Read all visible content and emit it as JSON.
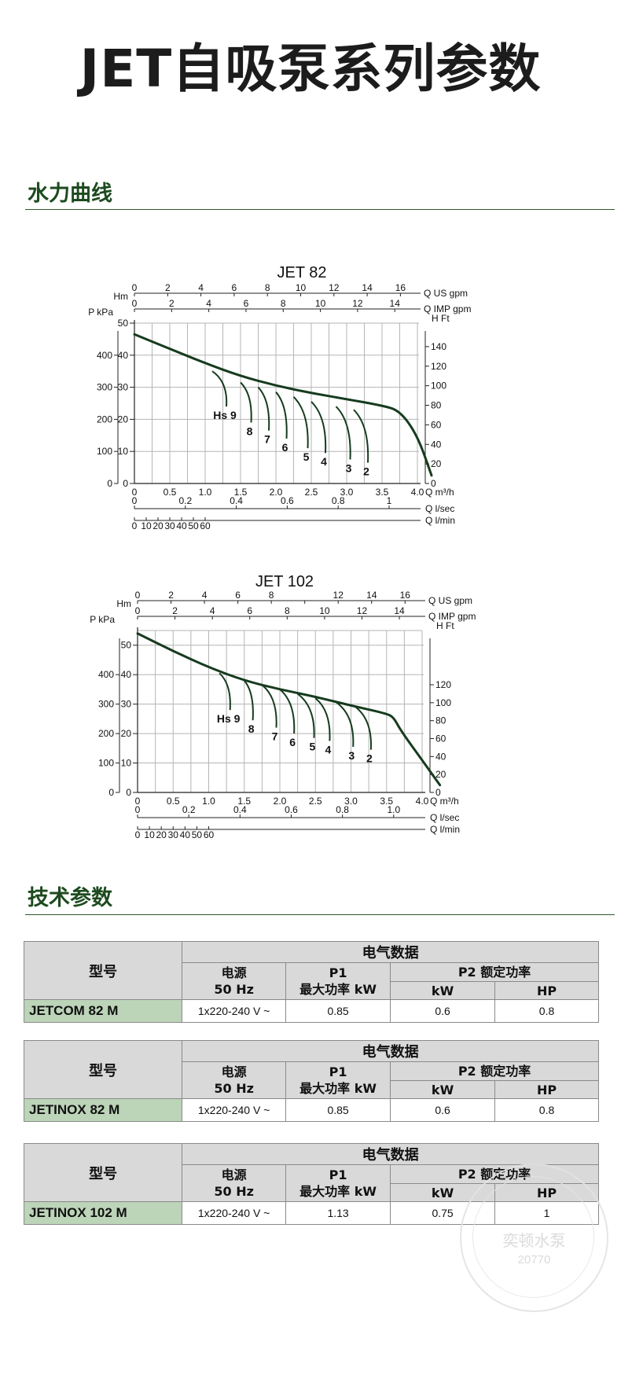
{
  "page": {
    "title": "JET自吸泵系列参数",
    "section_curves": "水力曲线",
    "section_specs": "技术参数"
  },
  "colors": {
    "curve": "#163b1e",
    "section_title": "#1d4a1f",
    "header_bg": "#d9d9d9",
    "model_bg": "#bcd4b8"
  },
  "chart_data": [
    {
      "type": "line",
      "title": "JET  82",
      "x_axis": {
        "label": "Q m³/h",
        "range": [
          0,
          4.0
        ],
        "ticks": [
          "0",
          "0.5",
          "1.0",
          "1.5",
          "2.0",
          "2.5",
          "3.0",
          "3.5",
          "4.0"
        ]
      },
      "top_axes": [
        {
          "label": "Q US gpm",
          "prefix": "Hm",
          "ticks": [
            "0",
            "2",
            "4",
            "6",
            "8",
            "10",
            "12",
            "14",
            "16"
          ]
        },
        {
          "label": "Q IMP gpm",
          "prefix": "P kPa",
          "ticks": [
            "0",
            "2",
            "4",
            "6",
            "8",
            "10",
            "12",
            "14"
          ]
        }
      ],
      "bottom_axes": [
        {
          "label": "Q l/sec",
          "ticks": [
            "0",
            "0.2",
            "0.4",
            "0.6",
            "0.8",
            "1"
          ]
        },
        {
          "label": "Q l/min",
          "ticks": [
            "0",
            "10",
            "20",
            "30",
            "40",
            "50",
            "60"
          ]
        }
      ],
      "y_left_hm": {
        "range": [
          0,
          50
        ],
        "ticks": [
          "0",
          "10",
          "20",
          "30",
          "40",
          "50"
        ]
      },
      "y_left_kpa": {
        "ticks": [
          "0",
          "100",
          "200",
          "300",
          "400"
        ]
      },
      "y_right": {
        "label": "H Ft",
        "ticks": [
          "0",
          "20",
          "40",
          "60",
          "80",
          "100",
          "120",
          "140"
        ]
      },
      "grid": true,
      "series": [
        {
          "x": [
            0,
            0.5,
            1.0,
            1.5,
            2.0,
            2.5,
            3.0,
            3.5,
            3.75,
            4.0,
            4.2
          ],
          "y": [
            46.5,
            42,
            37.5,
            33.5,
            30.5,
            28.2,
            26.3,
            24.3,
            22.7,
            15,
            2.5
          ]
        }
      ],
      "suction_labels": [
        {
          "label": "Hs 9",
          "x0": 1.1,
          "y0": 35.0,
          "x1": 1.3,
          "y1": 24.0
        },
        {
          "label": "8",
          "x0": 1.5,
          "y0": 31.5,
          "x1": 1.65,
          "y1": 19.0
        },
        {
          "label": "7",
          "x0": 1.75,
          "y0": 30.0,
          "x1": 1.9,
          "y1": 16.5
        },
        {
          "label": "6",
          "x0": 2.0,
          "y0": 28.5,
          "x1": 2.15,
          "y1": 14.0
        },
        {
          "label": "5",
          "x0": 2.25,
          "y0": 27.0,
          "x1": 2.45,
          "y1": 11.0
        },
        {
          "label": "4",
          "x0": 2.5,
          "y0": 25.5,
          "x1": 2.7,
          "y1": 9.5
        },
        {
          "label": "3",
          "x0": 2.85,
          "y0": 24.0,
          "x1": 3.05,
          "y1": 7.5
        },
        {
          "label": "2",
          "x0": 3.1,
          "y0": 23.0,
          "x1": 3.3,
          "y1": 6.5
        }
      ]
    },
    {
      "type": "line",
      "title": "JET 102",
      "x_axis": {
        "label": "Q m³/h",
        "range": [
          0,
          4.0
        ],
        "ticks": [
          "0",
          "0.5",
          "1.0",
          "1.5",
          "2.0",
          "2.5",
          "3.0",
          "3.5",
          "4.0"
        ]
      },
      "top_axes": [
        {
          "label": "Q US gpm",
          "prefix": "Hm",
          "ticks": [
            "0",
            "2",
            "4",
            "6",
            "8",
            "",
            "12",
            "14",
            "16"
          ]
        },
        {
          "label": "Q IMP gpm",
          "prefix": "P kPa",
          "ticks": [
            "0",
            "2",
            "4",
            "6",
            "8",
            "10",
            "12",
            "14"
          ]
        }
      ],
      "bottom_axes": [
        {
          "label": "Q l/sec",
          "ticks": [
            "0",
            "0.2",
            "0.4",
            "0.6",
            "0.8",
            "1.0"
          ]
        },
        {
          "label": "Q l/min",
          "ticks": [
            "0",
            "10",
            "20",
            "30",
            "40",
            "50",
            "60"
          ]
        }
      ],
      "y_left_hm": {
        "range": [
          0,
          55
        ],
        "ticks": [
          "0",
          "10",
          "20",
          "30",
          "40",
          "50"
        ]
      },
      "y_left_kpa": {
        "ticks": [
          "0",
          "100",
          "200",
          "300",
          "400"
        ]
      },
      "y_right": {
        "label": "H Ft",
        "ticks": [
          "0",
          "20",
          "40",
          "60",
          "80",
          "100",
          "120"
        ]
      },
      "grid": true,
      "series": [
        {
          "x": [
            0,
            0.5,
            1.0,
            1.5,
            2.0,
            2.5,
            3.0,
            3.5,
            3.6,
            3.7,
            4.0,
            4.25
          ],
          "y": [
            54,
            48,
            42.5,
            38,
            35,
            32.5,
            29.5,
            26.8,
            25.5,
            21,
            11,
            2.5
          ]
        }
      ],
      "suction_labels": [
        {
          "label": "Hs 9",
          "x0": 1.15,
          "y0": 40.5,
          "x1": 1.3,
          "y1": 28.0
        },
        {
          "label": "8",
          "x0": 1.5,
          "y0": 38.0,
          "x1": 1.62,
          "y1": 24.5
        },
        {
          "label": "7",
          "x0": 1.75,
          "y0": 36.5,
          "x1": 1.95,
          "y1": 22.0
        },
        {
          "label": "6",
          "x0": 2.0,
          "y0": 35.0,
          "x1": 2.2,
          "y1": 20.0
        },
        {
          "label": "5",
          "x0": 2.25,
          "y0": 33.5,
          "x1": 2.48,
          "y1": 18.5
        },
        {
          "label": "4",
          "x0": 2.5,
          "y0": 32.0,
          "x1": 2.7,
          "y1": 17.5
        },
        {
          "label": "3",
          "x0": 2.8,
          "y0": 30.5,
          "x1": 3.03,
          "y1": 15.5
        },
        {
          "label": "2",
          "x0": 3.05,
          "y0": 29.3,
          "x1": 3.28,
          "y1": 14.5
        }
      ]
    }
  ],
  "tables": [
    {
      "model_header": "型号",
      "electrical": "电气数据",
      "power": "电源\n50 Hz",
      "p1": "P1\n最大功率 kW",
      "p2": "P2 额定功率",
      "kw": "kW",
      "hp": "HP",
      "row": {
        "model": "JETCOM 82 M",
        "voltage": "1x220-240 V ~",
        "p1": "0.85",
        "kw": "0.6",
        "hp": "0.8"
      }
    },
    {
      "model_header": "型号",
      "electrical": "电气数据",
      "power": "电源\n50 Hz",
      "p1": "P1\n最大功率 kW",
      "p2": "P2 额定功率",
      "kw": "kW",
      "hp": "HP",
      "row": {
        "model": "JETINOX 82 M",
        "voltage": "1x220-240 V ~",
        "p1": "0.85",
        "kw": "0.6",
        "hp": "0.8"
      }
    },
    {
      "model_header": "型号",
      "electrical": "电气数据",
      "power": "电源\n50 Hz",
      "p1": "P1\n最大功率 kW",
      "p2": "P2 额定功率",
      "kw": "kW",
      "hp": "HP",
      "row": {
        "model": "JETINOX 102 M",
        "voltage": "1x220-240 V ~",
        "p1": "1.13",
        "kw": "0.75",
        "hp": "1"
      }
    }
  ],
  "seal": {
    "name": "奕顿水泵",
    "number": "20770"
  }
}
